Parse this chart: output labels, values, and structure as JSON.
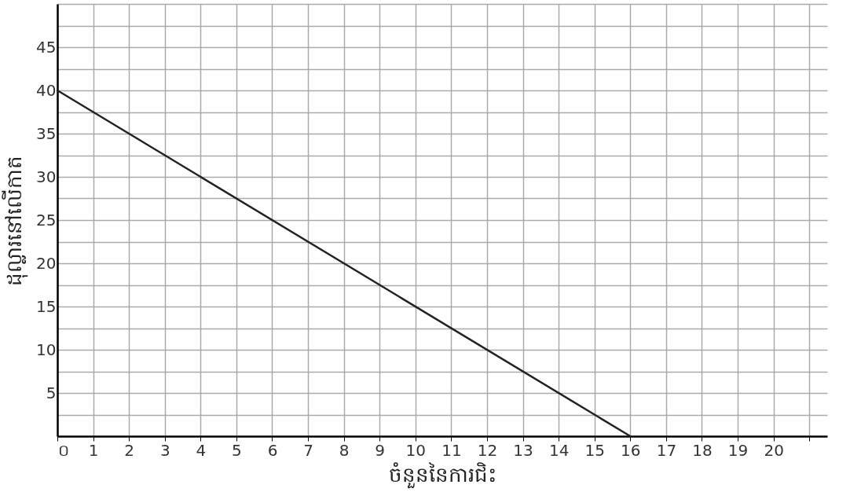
{
  "chart_data": {
    "type": "line",
    "xlabel": "ចំនួននៃការជិះ",
    "ylabel": "ដុល្លារនៅលើកាត",
    "x": [
      0,
      16
    ],
    "series": [
      {
        "color": "#222222",
        "values": [
          40,
          0
        ]
      }
    ],
    "xlim": [
      0,
      21.5
    ],
    "ylim": [
      0,
      50
    ],
    "xticks": [
      {
        "value": 0,
        "label": "០"
      },
      1,
      2,
      3,
      4,
      5,
      6,
      7,
      8,
      9,
      10,
      11,
      12,
      13,
      14,
      15,
      16,
      17,
      18,
      19,
      20,
      {
        "value": 21,
        "label": null
      }
    ],
    "yticks": [
      {
        "value": 2.5,
        "label": null
      },
      5,
      {
        "value": 7.5,
        "label": null
      },
      10,
      {
        "value": 12.5,
        "label": null
      },
      15,
      {
        "value": 17.5,
        "label": null
      },
      20,
      {
        "value": 22.5,
        "label": null
      },
      25,
      {
        "value": 27.5,
        "label": null
      },
      30,
      {
        "value": 32.5,
        "label": null
      },
      35,
      {
        "value": 37.5,
        "label": null
      },
      40,
      {
        "value": 42.5,
        "label": null
      },
      45,
      {
        "value": 47.5,
        "label": null
      },
      {
        "value": 50,
        "label": null
      }
    ],
    "grid": true,
    "marker": "none",
    "line_style": "solid"
  }
}
